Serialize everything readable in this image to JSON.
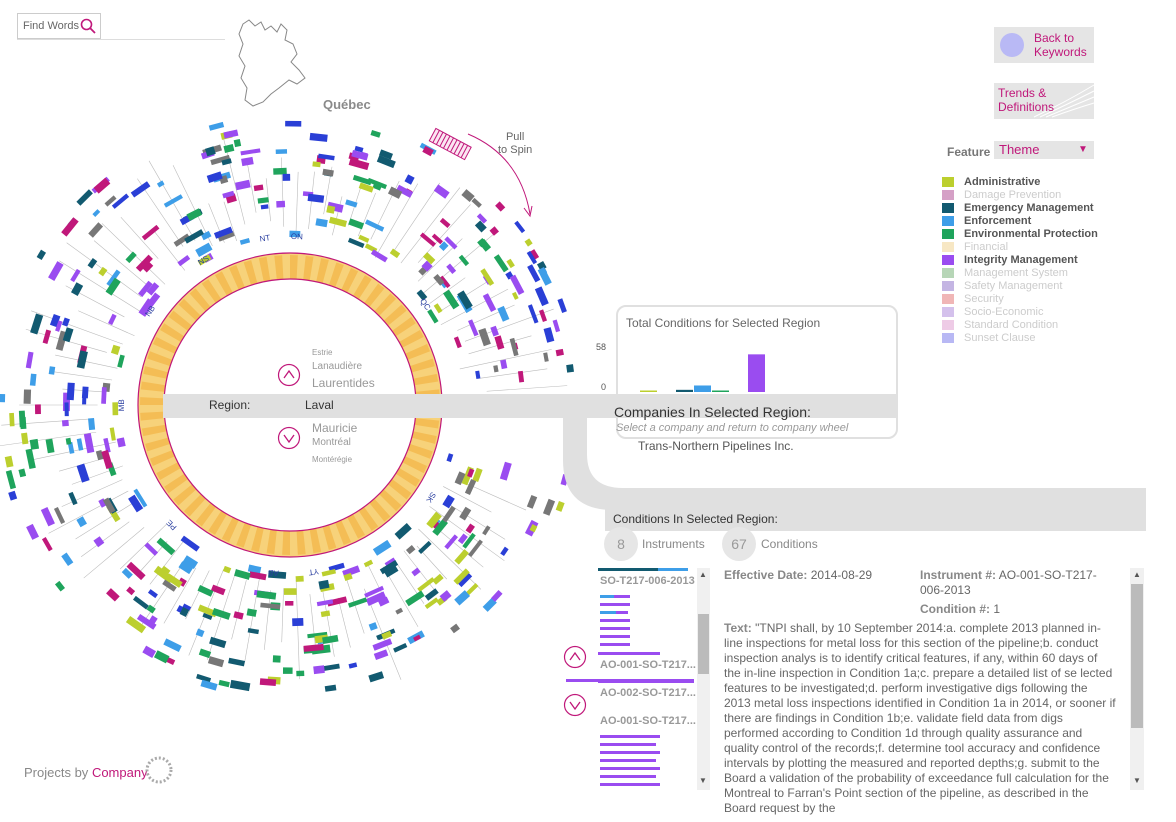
{
  "search": {
    "label": "Find Words"
  },
  "map": {
    "province": "Québec"
  },
  "spin": {
    "line1": "Pull",
    "line2": "to Spin"
  },
  "buttons": {
    "back_line1": "Back to",
    "back_line2": "Keywords",
    "trends_line1": "Trends &",
    "trends_line2": "Definitions"
  },
  "feature": {
    "label": "Feature",
    "value": "Theme"
  },
  "legend": [
    {
      "label": "Administrative",
      "color": "#bccf2e",
      "active": true
    },
    {
      "label": "Damage Prevention",
      "color": "#d5a0c6",
      "active": false
    },
    {
      "label": "Emergency Management",
      "color": "#125a70",
      "active": true
    },
    {
      "label": "Enforcement",
      "color": "#3e9ee8",
      "active": true
    },
    {
      "label": "Environmental Protection",
      "color": "#1fa45c",
      "active": true
    },
    {
      "label": "Financial",
      "color": "#f7e7c4",
      "active": false
    },
    {
      "label": "Integrity Management",
      "color": "#9a4cf0",
      "active": true
    },
    {
      "label": "Management System",
      "color": "#b7d6b7",
      "active": false
    },
    {
      "label": "Safety Management",
      "color": "#c4b5e3",
      "active": false
    },
    {
      "label": "Security",
      "color": "#f0b6b6",
      "active": false
    },
    {
      "label": "Socio-Economic",
      "color": "#d4c1ec",
      "active": false
    },
    {
      "label": "Standard Condition",
      "color": "#eecbe6",
      "active": false
    },
    {
      "label": "Sunset Clause",
      "color": "#b8b8f4",
      "active": false
    }
  ],
  "wheel": {
    "province_codes": [
      "NT",
      "ON",
      "NS",
      "QC",
      "NB",
      "MB",
      "SK",
      "PE",
      "AB",
      "YT"
    ]
  },
  "region": {
    "label": "Region:",
    "value": "Laval",
    "above": [
      "Estrie",
      "Lanaudière",
      "Laurentides"
    ],
    "below": [
      "Mauricie",
      "Montréal",
      "Montérégie"
    ]
  },
  "chart_data": {
    "type": "bar",
    "title": "Total Conditions for Selected Region",
    "yticks": [
      0,
      58
    ],
    "ylim": [
      0,
      58
    ],
    "series": [
      {
        "color": "#bccf2e",
        "value": 1
      },
      {
        "color": "#d5a0c6",
        "value": 0
      },
      {
        "color": "#125a70",
        "value": 3
      },
      {
        "color": "#3e9ee8",
        "value": 9
      },
      {
        "color": "#1fa45c",
        "value": 2
      },
      {
        "color": "#f7e7c4",
        "value": 0
      },
      {
        "color": "#9a4cf0",
        "value": 52
      }
    ]
  },
  "companies": {
    "title": "Companies In Selected Region:",
    "subtitle": "Select a company and return to company wheel",
    "items": [
      "Trans-Northern Pipelines Inc."
    ]
  },
  "conditions": {
    "title": "Conditions In Selected Region:",
    "instruments_count": "8",
    "instruments_label": "Instruments",
    "conditions_count": "67",
    "conditions_label": "Conditions"
  },
  "instruments": [
    "SO-T217-006-2013",
    "AO-001-SO-T217...",
    "AO-002-SO-T217...",
    "AO-001-SO-T217..."
  ],
  "detail": {
    "effective_label": "Effective Date:",
    "effective_value": "2014-08-29",
    "instrument_label": "Instrument #:",
    "instrument_value": "AO-001-SO-T217-006-2013",
    "condition_label": "Condition #:",
    "condition_value": "1",
    "text_label": "Text:",
    "text_value": "\"TNPI shall, by 10 September 2014:a. complete 2013 planned in-line inspections for metal loss for this section of the pipeline;b. conduct inspection analys is to identify critical features, if any, within 60 days of the in-line inspection in Condition 1a;c. prepare a detailed list of se lected features to be investigated;d. perform investigative digs following the 2013 metal loss inspections identified in Condition 1a in 2014, or sooner if there are findings in Condition 1b;e. validate field data from digs performed according to Condition 1d through quality assurance and quality control of the records;f. determine tool accuracy and confidence intervals by plotting the measured and reported depths;g. submit to the Board a validation of the probability of exceedance full calculation for the Montreal to Farran's Point section of the pipeline, as described in the Board request by the"
  },
  "brand": {
    "prefix": "Projects by",
    "company": "Company"
  }
}
